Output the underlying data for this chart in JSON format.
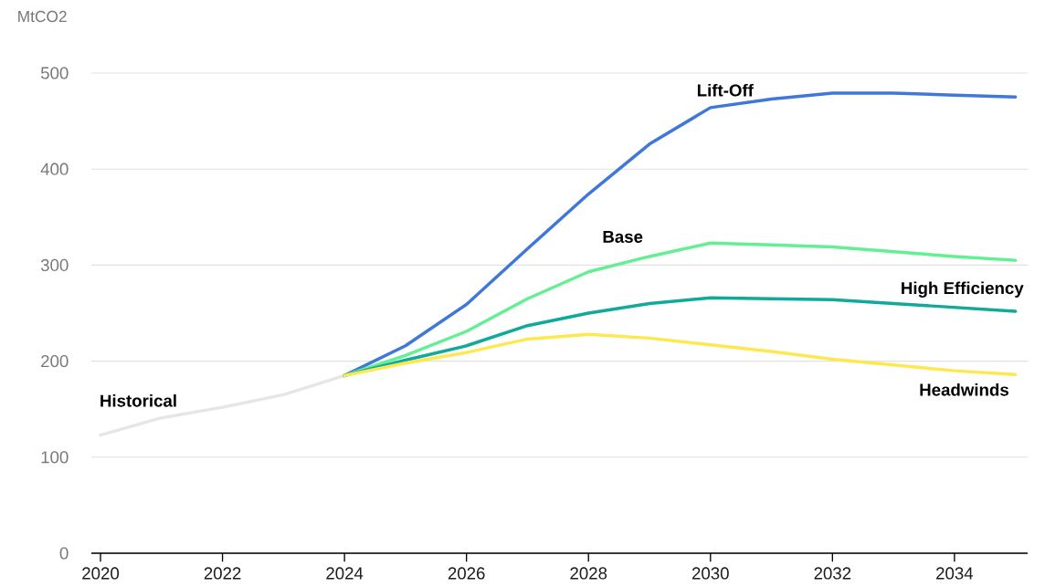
{
  "chart_data": {
    "type": "line",
    "ylabel": "MtCO2",
    "xlim": [
      2019.85,
      2035.2
    ],
    "ylim": [
      0,
      500
    ],
    "xticks": [
      2020,
      2022,
      2024,
      2026,
      2028,
      2030,
      2032,
      2034
    ],
    "yticks": [
      0,
      100,
      200,
      300,
      400,
      500
    ],
    "grid": "y",
    "series": [
      {
        "name": "Historical",
        "color": "#e6e6e6",
        "x": [
          2020,
          2021,
          2022,
          2023,
          2024
        ],
        "values": [
          123,
          141,
          152,
          165,
          185
        ]
      },
      {
        "name": "Lift-Off",
        "color": "#3f78d8",
        "x": [
          2024,
          2025,
          2026,
          2027,
          2028,
          2029,
          2030,
          2031,
          2032,
          2033,
          2034,
          2035
        ],
        "values": [
          185,
          216,
          259,
          317,
          374,
          426,
          464,
          473,
          479,
          479,
          477,
          475
        ]
      },
      {
        "name": "Base",
        "color": "#63ef93",
        "x": [
          2024,
          2025,
          2026,
          2027,
          2028,
          2029,
          2030,
          2031,
          2032,
          2033,
          2034,
          2035
        ],
        "values": [
          185,
          206,
          231,
          265,
          293,
          309,
          323,
          321,
          319,
          314,
          309,
          305
        ]
      },
      {
        "name": "High Efficiency",
        "color": "#10a99a",
        "x": [
          2024,
          2025,
          2026,
          2027,
          2028,
          2029,
          2030,
          2031,
          2032,
          2033,
          2034,
          2035
        ],
        "values": [
          185,
          201,
          216,
          237,
          250,
          260,
          266,
          265,
          264,
          260,
          256,
          252
        ]
      },
      {
        "name": "Headwinds",
        "color": "#fde94f",
        "x": [
          2024,
          2025,
          2026,
          2027,
          2028,
          2029,
          2030,
          2031,
          2032,
          2033,
          2034,
          2035
        ],
        "values": [
          185,
          198,
          209,
          223,
          228,
          224,
          217,
          210,
          202,
          196,
          190,
          186
        ]
      }
    ]
  }
}
